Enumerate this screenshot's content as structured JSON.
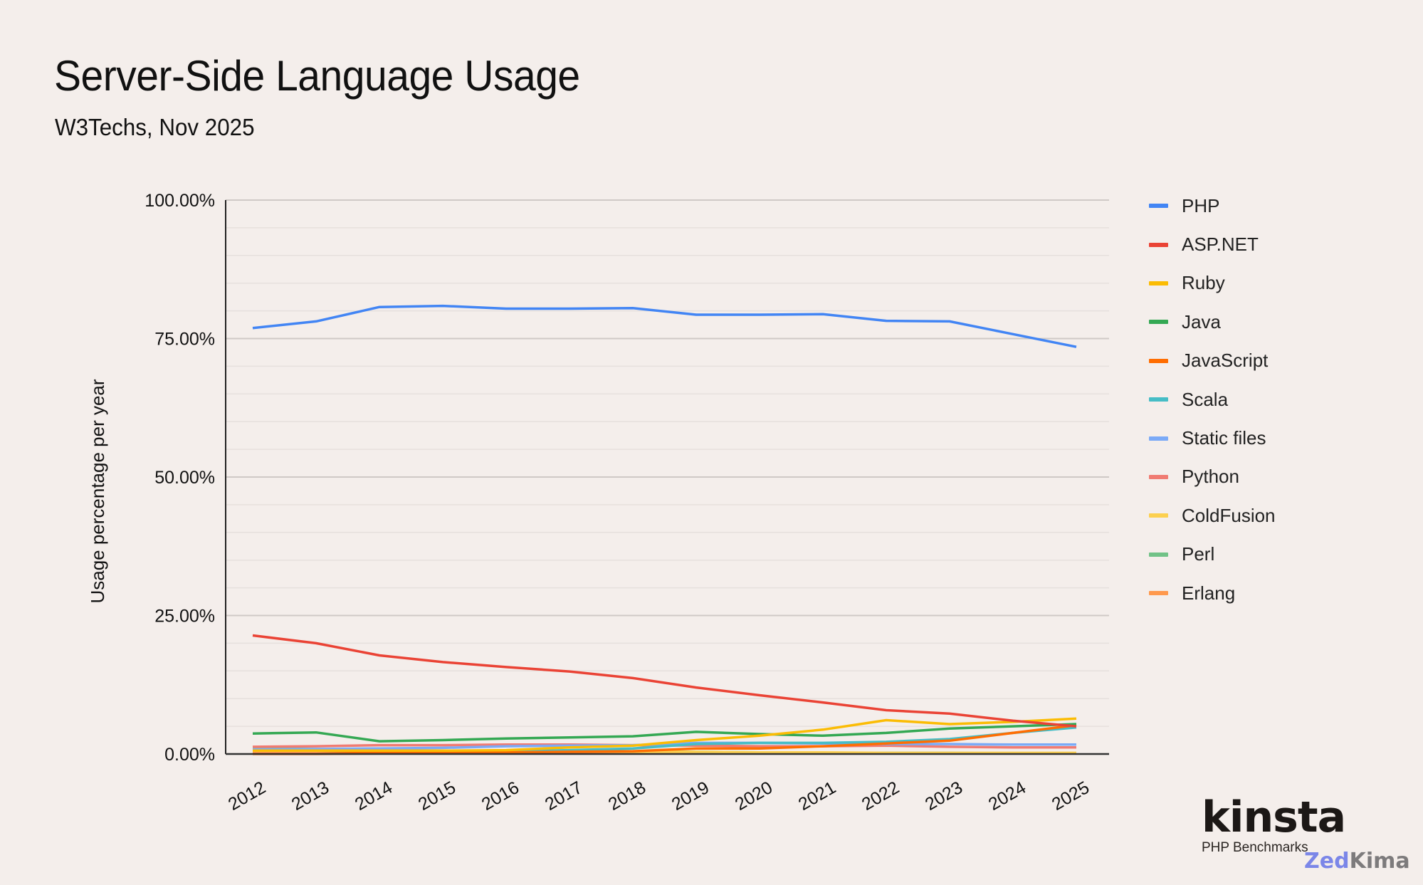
{
  "header": {
    "title": "Server-Side Language Usage",
    "subtitle": "W3Techs, Nov 2025"
  },
  "branding": {
    "logo": "kinsta",
    "tagline": "PHP Benchmarks",
    "watermark_part1": "Zed",
    "watermark_part2": "Kima"
  },
  "chart_data": {
    "type": "line",
    "title": "Server-Side Language Usage",
    "subtitle": "W3Techs, Nov 2025",
    "xlabel": "",
    "ylabel": "Usage percentage per year",
    "ylim": [
      0,
      100
    ],
    "yticks": [
      "0.00%",
      "25.00%",
      "50.00%",
      "75.00%",
      "100.00%"
    ],
    "y_tick_values": [
      0,
      25,
      50,
      75,
      100
    ],
    "minor_grid_step": 5,
    "grid": true,
    "legend_position": "right",
    "x": [
      "2012",
      "2013",
      "2014",
      "2015",
      "2016",
      "2017",
      "2018",
      "2019",
      "2020",
      "2021",
      "2022",
      "2023",
      "2024",
      "2025"
    ],
    "series": [
      {
        "name": "PHP",
        "color": "#4285f4",
        "values": [
          76.9,
          78.1,
          80.7,
          80.9,
          80.4,
          80.4,
          80.5,
          79.3,
          79.3,
          79.4,
          78.2,
          78.1,
          75.8,
          73.5
        ]
      },
      {
        "name": "ASP.NET",
        "color": "#ea4335",
        "values": [
          21.4,
          20.0,
          17.8,
          16.6,
          15.7,
          14.9,
          13.7,
          12.0,
          10.6,
          9.3,
          7.9,
          7.3,
          6.0,
          5.0
        ]
      },
      {
        "name": "Ruby",
        "color": "#fbbc04",
        "values": [
          0.6,
          0.6,
          0.6,
          0.6,
          0.7,
          1.2,
          1.5,
          2.5,
          3.3,
          4.4,
          6.1,
          5.4,
          5.8,
          6.4
        ]
      },
      {
        "name": "Java",
        "color": "#34a853",
        "values": [
          3.7,
          3.9,
          2.3,
          2.5,
          2.8,
          3.0,
          3.2,
          4.0,
          3.6,
          3.3,
          3.8,
          4.6,
          5.0,
          5.4
        ]
      },
      {
        "name": "JavaScript",
        "color": "#ff6d01",
        "values": [
          0.1,
          0.1,
          0.2,
          0.2,
          0.3,
          0.4,
          0.5,
          1.0,
          1.0,
          1.4,
          1.9,
          2.4,
          3.8,
          5.2
        ]
      },
      {
        "name": "Scala",
        "color": "#46bdc6",
        "values": [
          0.1,
          0.1,
          0.2,
          0.3,
          0.5,
          0.7,
          1.0,
          1.8,
          2.0,
          2.0,
          2.2,
          2.7,
          3.8,
          4.8
        ]
      },
      {
        "name": "Static files",
        "color": "#7baaf7",
        "values": [
          0.8,
          0.9,
          1.0,
          1.1,
          1.4,
          1.5,
          1.6,
          2.0,
          2.0,
          1.9,
          1.8,
          1.8,
          1.7,
          1.7
        ]
      },
      {
        "name": "Python",
        "color": "#f07b72",
        "values": [
          1.3,
          1.4,
          1.6,
          1.6,
          1.7,
          1.7,
          1.6,
          1.5,
          1.4,
          1.4,
          1.5,
          1.3,
          1.2,
          1.2
        ]
      },
      {
        "name": "ColdFusion",
        "color": "#fcd04f",
        "values": [
          0.8,
          0.7,
          0.6,
          0.6,
          0.5,
          0.5,
          0.4,
          0.4,
          0.3,
          0.3,
          0.2,
          0.2,
          0.2,
          0.2
        ]
      },
      {
        "name": "Perl",
        "color": "#71c287",
        "values": [
          1.0,
          0.9,
          0.7,
          0.6,
          0.6,
          0.6,
          0.5,
          0.4,
          0.3,
          0.2,
          0.2,
          0.2,
          0.1,
          0.1
        ]
      },
      {
        "name": "Erlang",
        "color": "#ff994d",
        "values": [
          0.0,
          0.0,
          0.1,
          0.1,
          0.1,
          0.1,
          0.1,
          0.1,
          0.1,
          0.1,
          0.1,
          0.1,
          0.1,
          0.1
        ]
      }
    ]
  }
}
